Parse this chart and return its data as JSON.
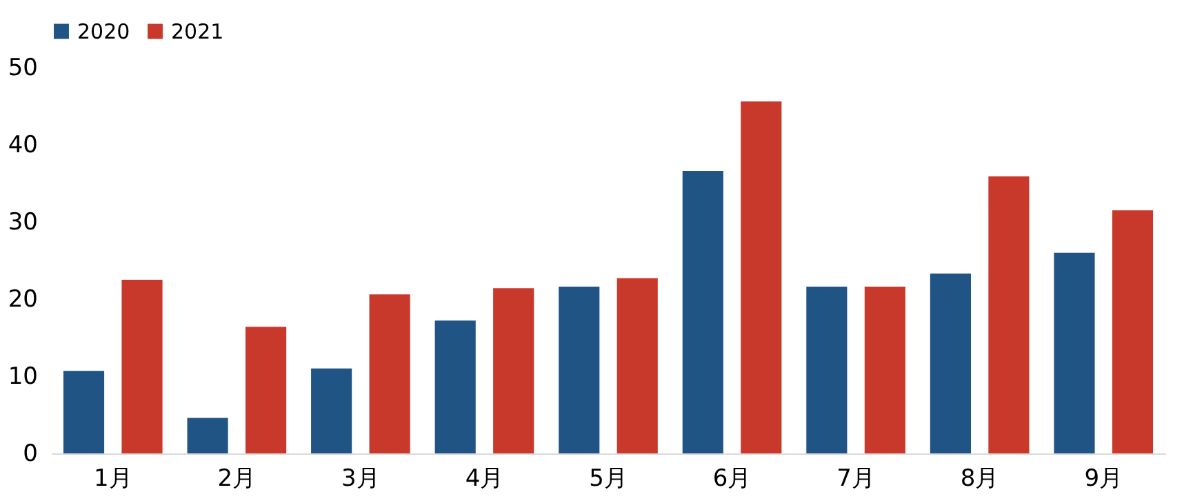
{
  "chart_data": {
    "type": "bar",
    "categories": [
      "1月",
      "2月",
      "3月",
      "4月",
      "5月",
      "6月",
      "7月",
      "8月",
      "9月"
    ],
    "series": [
      {
        "name": "2020",
        "color": "#1f5485",
        "values": [
          10.7,
          4.6,
          11.0,
          17.2,
          21.6,
          36.6,
          21.6,
          23.3,
          26.0
        ]
      },
      {
        "name": "2021",
        "color": "#c9392b",
        "values": [
          22.5,
          16.4,
          20.6,
          21.4,
          22.7,
          45.6,
          21.6,
          35.9,
          31.5
        ]
      }
    ],
    "ylim": [
      0,
      50
    ],
    "yticks": [
      0,
      10,
      20,
      30,
      40,
      50
    ],
    "grid": false,
    "legend": "top"
  }
}
